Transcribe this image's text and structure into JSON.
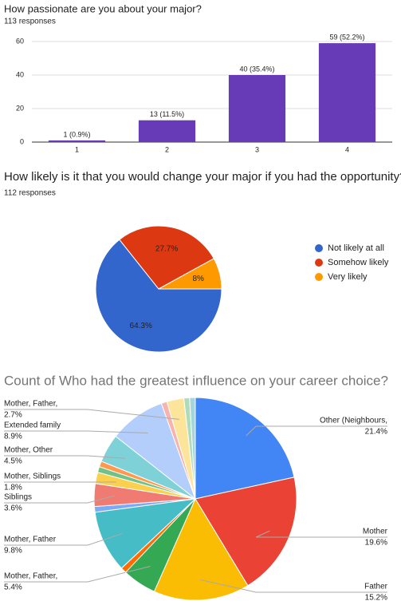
{
  "chart_data": [
    {
      "type": "bar",
      "title": "How passionate are you about your major?",
      "subtitle": "113 responses",
      "categories": [
        "1",
        "2",
        "3",
        "4"
      ],
      "values": [
        1,
        13,
        40,
        59
      ],
      "value_labels": [
        "1 (0.9%)",
        "13 (11.5%)",
        "40 (35.4%)",
        "59 (52.2%)"
      ],
      "color": "#673ab7",
      "ylim": [
        0,
        60
      ],
      "yticks": [
        0,
        20,
        40,
        60
      ],
      "grid": true
    },
    {
      "type": "pie",
      "title": "How likely is it that you would change your major if you had the opportunity?",
      "subtitle": "112 responses",
      "categories": [
        "Not likely at all",
        "Somehow likely",
        "Very likely"
      ],
      "values": [
        64.3,
        27.7,
        8
      ],
      "value_labels": [
        "64.3%",
        "27.7%",
        "8%"
      ],
      "colors": [
        "#3366cc",
        "#dc3912",
        "#ff9900"
      ],
      "legend": "right"
    },
    {
      "type": "pie",
      "title": "Count of Who had the greatest influence on your career choice?",
      "categories": [
        "Other (Neighbours,",
        "Mother",
        "Father",
        "Mother, Father,",
        null,
        "Mother, Father",
        null,
        "Siblings",
        "Mother, Siblings",
        null,
        null,
        "Mother, Other",
        "Extended family",
        null,
        "Mother, Father,",
        null,
        null
      ],
      "values": [
        21.4,
        19.6,
        15.2,
        5.4,
        0.9,
        9.8,
        0.9,
        3.6,
        1.8,
        0.9,
        0.9,
        4.5,
        8.9,
        0.9,
        2.7,
        0.9,
        0.9
      ],
      "value_labels": [
        "21.4%",
        "19.6%",
        "15.2%",
        "5.4%",
        null,
        "9.8%",
        null,
        "3.6%",
        "1.8%",
        null,
        null,
        "4.5%",
        "8.9%",
        null,
        "2.7%",
        null,
        null
      ],
      "colors": [
        "#4285f4",
        "#ea4335",
        "#fbbc04",
        "#34a853",
        "#ff6d01",
        "#46bdc6",
        "#7baaf7",
        "#f07b72",
        "#fcd04f",
        "#71c287",
        "#ff994d",
        "#7ed1d7",
        "#b3cefb",
        "#f7b4ae",
        "#fde49b",
        "#aedcba",
        "#a3d7dd"
      ]
    }
  ]
}
